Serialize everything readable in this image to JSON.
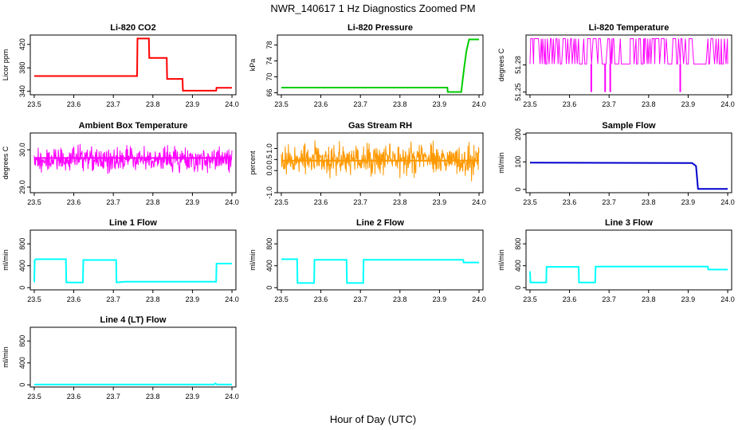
{
  "figure": {
    "title": "NWR_140617  1 Hz Diagnostics Zoomed PM",
    "xlabel": "Hour of Day (UTC)"
  },
  "chart_data": [
    {
      "type": "line",
      "title": "Li-820 CO2",
      "ylabel": "Licor ppm",
      "color": "#ff0000",
      "xlim": [
        23.49,
        24.01
      ],
      "ylim": [
        334,
        436
      ],
      "xticks": [
        "23.5",
        "23.6",
        "23.7",
        "23.8",
        "23.9",
        "24.0"
      ],
      "yticks": [
        340,
        380,
        420
      ],
      "x": [
        23.5,
        23.76,
        23.761,
        23.79,
        23.791,
        23.835,
        23.836,
        23.875,
        23.876,
        23.96,
        23.961,
        24.0
      ],
      "y": [
        366,
        366,
        430,
        430,
        397,
        397,
        361,
        361,
        341,
        341,
        346,
        346
      ]
    },
    {
      "type": "line",
      "title": "Li-820 Pressure",
      "ylabel": "kPa",
      "color": "#00cc00",
      "xlim": [
        23.49,
        24.01
      ],
      "ylim": [
        65.5,
        80.5
      ],
      "xticks": [
        "23.5",
        "23.6",
        "23.7",
        "23.8",
        "23.9",
        "24.0"
      ],
      "yticks": [
        66,
        70,
        74,
        78
      ],
      "x": [
        23.5,
        23.92,
        23.921,
        23.955,
        23.962,
        23.968,
        23.975,
        24.0
      ],
      "y": [
        67.3,
        67.3,
        66.2,
        66.2,
        72.0,
        76.5,
        79.4,
        79.4
      ]
    },
    {
      "type": "line",
      "title": "Li-820 Temperature",
      "ylabel": "degrees C",
      "color": "#ff00ff",
      "xlim": [
        23.49,
        24.01
      ],
      "ylim": [
        51.247,
        51.313
      ],
      "xticks": [
        "23.5",
        "23.6",
        "23.7",
        "23.8",
        "23.9",
        "24.0"
      ],
      "yticks": [
        51.25,
        51.28
      ],
      "ytick_labels": [
        "51.25",
        "51.28"
      ],
      "levels": [
        51.281,
        51.309
      ],
      "dips": [
        23.655,
        23.69,
        23.703,
        23.88
      ],
      "dip_value": 51.25
    },
    {
      "type": "line",
      "title": "Ambient Box Temperature",
      "ylabel": "degrees C",
      "color": "#ff00ff",
      "xlim": [
        23.49,
        24.01
      ],
      "ylim": [
        28.85,
        30.45
      ],
      "xticks": [
        "23.5",
        "23.6",
        "23.7",
        "23.8",
        "23.9",
        "24.0"
      ],
      "yticks": [
        29.0,
        30.0
      ],
      "ytick_labels": [
        "29.0",
        "30.0"
      ],
      "center": 29.78,
      "band": [
        29.3,
        30.2
      ]
    },
    {
      "type": "line",
      "title": "Gas Stream RH",
      "ylabel": "percent",
      "color": "#ff9900",
      "xlim": [
        23.49,
        24.01
      ],
      "ylim": [
        -1.0,
        1.7
      ],
      "xticks": [
        "23.5",
        "23.6",
        "23.7",
        "23.8",
        "23.9",
        "24.0"
      ],
      "yticks": [
        -1.0,
        0.0,
        0.5,
        1.0
      ],
      "ytick_labels": [
        "-1.0",
        "0.0",
        "0.5",
        "1.0"
      ],
      "center": 0.45,
      "band": [
        -0.5,
        1.5
      ]
    },
    {
      "type": "line",
      "title": "Sample Flow",
      "ylabel": "ml/min",
      "color": "#0000cc",
      "xlim": [
        23.49,
        24.01
      ],
      "ylim": [
        -12,
        205
      ],
      "xticks": [
        "23.5",
        "23.6",
        "23.7",
        "23.8",
        "23.9",
        "24.0"
      ],
      "yticks": [
        0,
        100,
        200
      ],
      "x": [
        23.5,
        23.91,
        23.92,
        23.925,
        24.0
      ],
      "y": [
        97,
        96,
        85,
        2,
        2
      ]
    },
    {
      "type": "line",
      "title": "Line 1 Flow",
      "ylabel": "ml/min",
      "color": "#00ffff",
      "xlim": [
        23.49,
        24.01
      ],
      "ylim": [
        -40,
        1050
      ],
      "xticks": [
        "23.5",
        "23.6",
        "23.7",
        "23.8",
        "23.9",
        "24.0"
      ],
      "yticks": [
        0,
        400,
        800
      ],
      "x": [
        23.5,
        23.501,
        23.504,
        23.58,
        23.581,
        23.623,
        23.624,
        23.707,
        23.708,
        23.73,
        23.96,
        23.961,
        24.0
      ],
      "y": [
        100,
        500,
        520,
        520,
        95,
        95,
        505,
        505,
        95,
        110,
        110,
        440,
        440
      ]
    },
    {
      "type": "line",
      "title": "Line 2 Flow",
      "ylabel": "ml/min",
      "color": "#00ffff",
      "xlim": [
        23.49,
        24.01
      ],
      "ylim": [
        -40,
        1050
      ],
      "xticks": [
        "23.5",
        "23.6",
        "23.7",
        "23.8",
        "23.9",
        "24.0"
      ],
      "yticks": [
        0,
        400,
        800
      ],
      "x": [
        23.5,
        23.54,
        23.541,
        23.583,
        23.584,
        23.665,
        23.666,
        23.707,
        23.708,
        23.96,
        23.961,
        24.0
      ],
      "y": [
        520,
        520,
        85,
        85,
        510,
        510,
        85,
        85,
        510,
        510,
        460,
        460
      ]
    },
    {
      "type": "line",
      "title": "Line 3 Flow",
      "ylabel": "ml/min",
      "color": "#00ffff",
      "xlim": [
        23.49,
        24.01
      ],
      "ylim": [
        -40,
        1050
      ],
      "xticks": [
        "23.5",
        "23.6",
        "23.7",
        "23.8",
        "23.9",
        "24.0"
      ],
      "yticks": [
        0,
        400,
        800
      ],
      "x": [
        23.5,
        23.501,
        23.503,
        23.541,
        23.542,
        23.623,
        23.624,
        23.665,
        23.666,
        23.95,
        23.951,
        24.0
      ],
      "y": [
        300,
        95,
        95,
        95,
        380,
        380,
        95,
        95,
        385,
        385,
        330,
        330
      ]
    },
    {
      "type": "line",
      "title": "Line 4 (LT) Flow",
      "ylabel": "ml/min",
      "color": "#00ffff",
      "xlim": [
        23.49,
        24.01
      ],
      "ylim": [
        -40,
        1050
      ],
      "xticks": [
        "23.5",
        "23.6",
        "23.7",
        "23.8",
        "23.9",
        "24.0"
      ],
      "yticks": [
        0,
        400,
        800
      ],
      "x": [
        23.5,
        23.955,
        23.958,
        23.962,
        24.0
      ],
      "y": [
        5,
        5,
        25,
        5,
        5
      ]
    }
  ]
}
